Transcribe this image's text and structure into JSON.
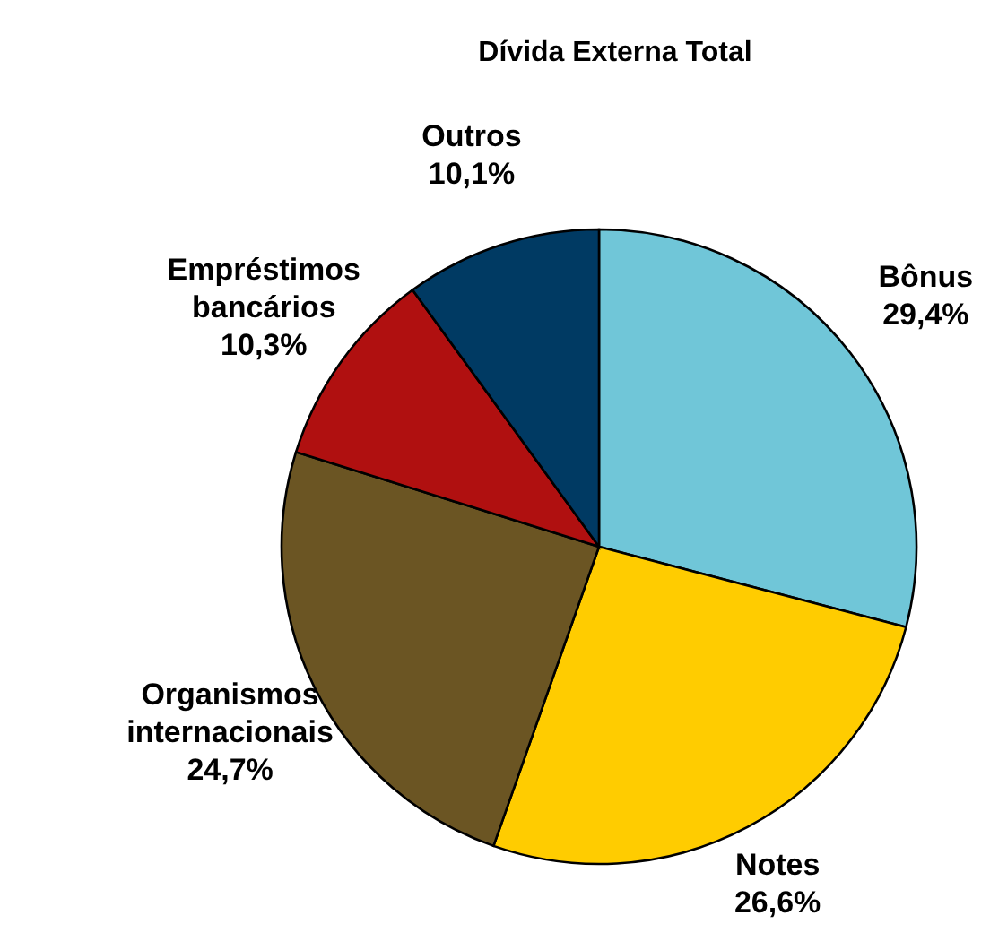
{
  "chart_data": {
    "type": "pie",
    "title": "Dívida Externa Total",
    "categories": [
      "Bônus",
      "Notes",
      "Organismos internacionais",
      "Empréstimos bancários",
      "Outros"
    ],
    "values": [
      29.4,
      26.6,
      24.7,
      10.3,
      10.1
    ],
    "value_labels": [
      "29,4%",
      "26,6%",
      "24,7%",
      "10,3%",
      "10,1%"
    ],
    "colors": [
      "#70c6d8",
      "#ffcc00",
      "#6b5523",
      "#b01010",
      "#003a63"
    ]
  }
}
